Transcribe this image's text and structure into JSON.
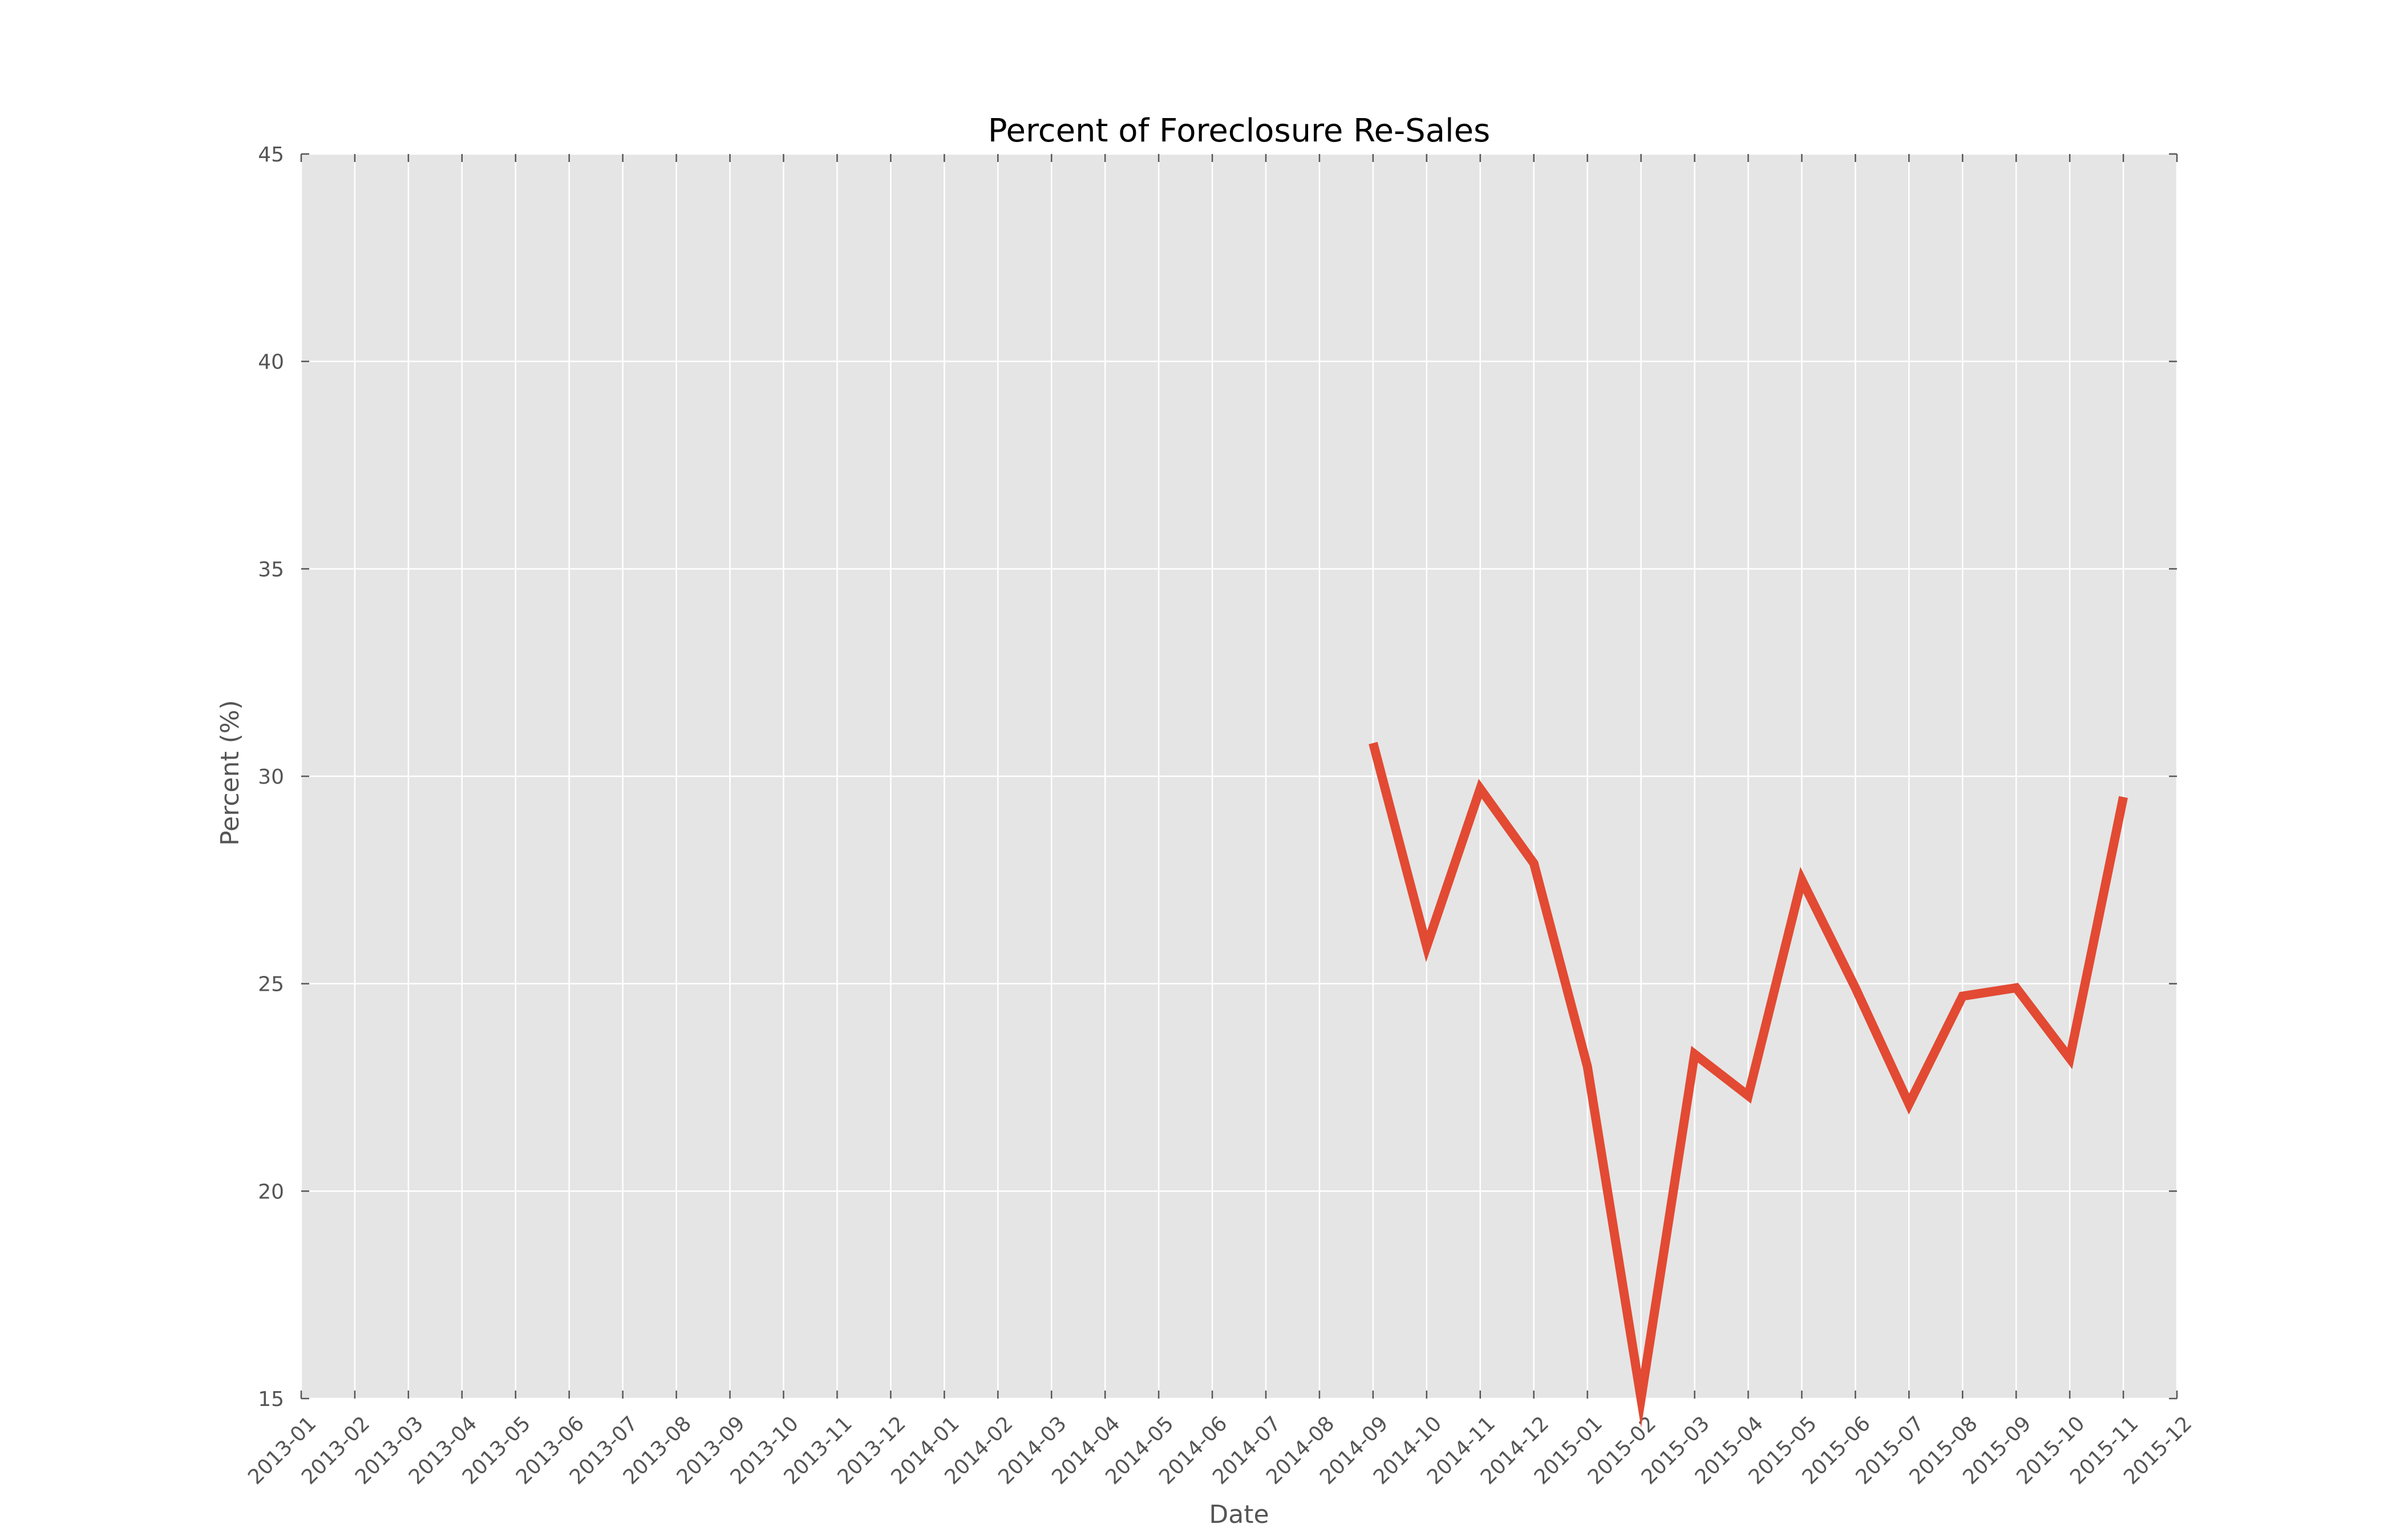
{
  "chart_data": {
    "type": "line",
    "title": "Percent of Foreclosure Re-Sales",
    "xlabel": "Date",
    "ylabel": "Percent (%)",
    "x_ticks": [
      "2013-01",
      "2013-02",
      "2013-03",
      "2013-04",
      "2013-05",
      "2013-06",
      "2013-07",
      "2013-08",
      "2013-09",
      "2013-10",
      "2013-11",
      "2013-12",
      "2014-01",
      "2014-02",
      "2014-03",
      "2014-04",
      "2014-05",
      "2014-06",
      "2014-07",
      "2014-08",
      "2014-09",
      "2014-10",
      "2014-11",
      "2014-12",
      "2015-01",
      "2015-02",
      "2015-03",
      "2015-04",
      "2015-05",
      "2015-06",
      "2015-07",
      "2015-08",
      "2015-09",
      "2015-10",
      "2015-11",
      "2015-12"
    ],
    "y_ticks": [
      15,
      20,
      25,
      30,
      35,
      40,
      45
    ],
    "ylim": [
      15,
      45
    ],
    "xlim": [
      "2013-01",
      "2015-12"
    ],
    "grid": true,
    "series": [
      {
        "x": [
          "2014-09",
          "2014-10",
          "2014-11",
          "2014-12",
          "2015-01",
          "2015-02",
          "2015-03",
          "2015-04",
          "2015-05",
          "2015-06",
          "2015-07",
          "2015-08",
          "2015-09",
          "2015-10",
          "2015-11"
        ],
        "values": [
          30.8,
          25.9,
          29.7,
          27.9,
          23.0,
          15.0,
          23.3,
          22.3,
          27.5,
          24.9,
          22.1,
          24.7,
          24.9,
          23.2,
          29.5
        ],
        "color": "#e24a33"
      }
    ],
    "colors": {
      "plot_background": "#e5e5e5",
      "grid": "#ffffff",
      "tick_text": "#555555",
      "title_text": "#000000"
    }
  }
}
